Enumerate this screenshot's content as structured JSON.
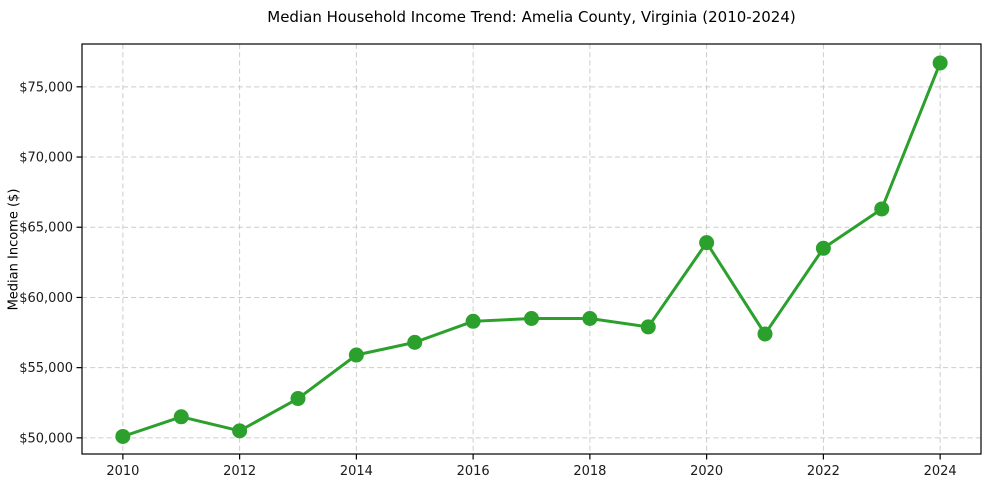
{
  "chart_data": {
    "type": "line",
    "title": "Median Household Income Trend: Amelia County, Virginia (2010-2024)",
    "xlabel": "",
    "ylabel": "Median Income ($)",
    "x": [
      2010,
      2011,
      2012,
      2013,
      2014,
      2015,
      2016,
      2017,
      2018,
      2019,
      2020,
      2021,
      2022,
      2023,
      2024
    ],
    "values": [
      50100,
      51500,
      50500,
      52800,
      55900,
      56800,
      58300,
      58500,
      58500,
      57900,
      63900,
      57400,
      63500,
      66300,
      76700
    ],
    "x_ticks": [
      2010,
      2012,
      2014,
      2016,
      2018,
      2020,
      2022,
      2024
    ],
    "x_tick_labels": [
      "2010",
      "2012",
      "2014",
      "2016",
      "2018",
      "2020",
      "2022",
      "2024"
    ],
    "y_ticks": [
      50000,
      55000,
      60000,
      65000,
      70000,
      75000
    ],
    "y_tick_labels": [
      "$50,000",
      "$55,000",
      "$60,000",
      "$65,000",
      "$70,000",
      "$75,000"
    ],
    "xlim": [
      2009.3,
      2024.7
    ],
    "ylim": [
      48850,
      78050
    ],
    "grid": true,
    "grid_style": "dashed",
    "legend": false,
    "line_color": "#2ca02c",
    "marker": "circle",
    "marker_radius": 7.5,
    "line_width": 3,
    "grid_color": "#cccccc",
    "spine_color": "#000000",
    "background_color": "#ffffff"
  }
}
